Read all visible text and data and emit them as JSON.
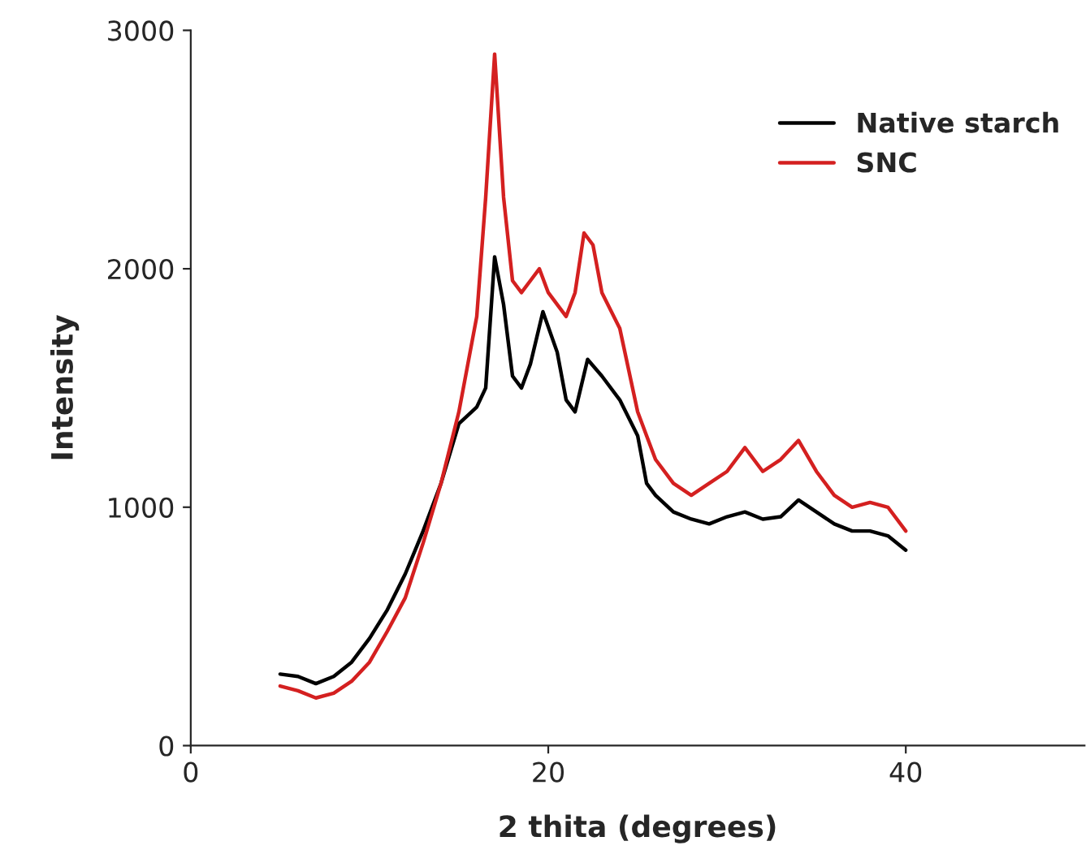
{
  "chart_data": {
    "type": "line",
    "xlabel": "2 thita (degrees)",
    "ylabel": "Intensity",
    "xlim": [
      0,
      50
    ],
    "xticks": [
      0,
      20,
      40
    ],
    "ylim": [
      0,
      3000
    ],
    "yticks": [
      0,
      1000,
      2000,
      3000
    ],
    "legend": "top right",
    "grid": false,
    "marker": "none",
    "line_style": "solid",
    "series": [
      {
        "name": "Native starch",
        "color": "#000000",
        "x": [
          5,
          6,
          7,
          8,
          9,
          10,
          11,
          12,
          13,
          14,
          15,
          16,
          16.5,
          17,
          17.5,
          18,
          18.5,
          19,
          19.7,
          20.5,
          21,
          21.5,
          22.2,
          23,
          24,
          25,
          25.5,
          26,
          27,
          28,
          29,
          30,
          31,
          32,
          33,
          34,
          35,
          36,
          37,
          38,
          39,
          40
        ],
        "values": [
          300,
          290,
          260,
          290,
          350,
          450,
          570,
          720,
          900,
          1100,
          1350,
          1420,
          1500,
          2050,
          1850,
          1550,
          1500,
          1600,
          1820,
          1650,
          1450,
          1400,
          1620,
          1550,
          1450,
          1300,
          1100,
          1050,
          980,
          950,
          930,
          960,
          980,
          950,
          960,
          1030,
          980,
          930,
          900,
          900,
          880,
          820
        ]
      },
      {
        "name": "SNC",
        "color": "#d42020",
        "x": [
          5,
          6,
          7,
          8,
          9,
          10,
          11,
          12,
          13,
          14,
          15,
          16,
          16.5,
          17,
          17.5,
          18,
          18.5,
          19,
          19.5,
          20,
          20.5,
          21,
          21.5,
          22,
          22.5,
          23,
          24,
          25,
          25.5,
          26,
          27,
          28,
          29,
          30,
          31,
          32,
          33,
          34,
          35,
          36,
          37,
          38,
          39,
          40
        ],
        "values": [
          250,
          230,
          200,
          220,
          270,
          350,
          480,
          620,
          850,
          1100,
          1400,
          1800,
          2300,
          2900,
          2300,
          1950,
          1900,
          1950,
          2000,
          1900,
          1850,
          1800,
          1900,
          2150,
          2100,
          1900,
          1750,
          1400,
          1300,
          1200,
          1100,
          1050,
          1100,
          1150,
          1250,
          1150,
          1200,
          1280,
          1150,
          1050,
          1000,
          1020,
          1000,
          900
        ]
      }
    ]
  }
}
